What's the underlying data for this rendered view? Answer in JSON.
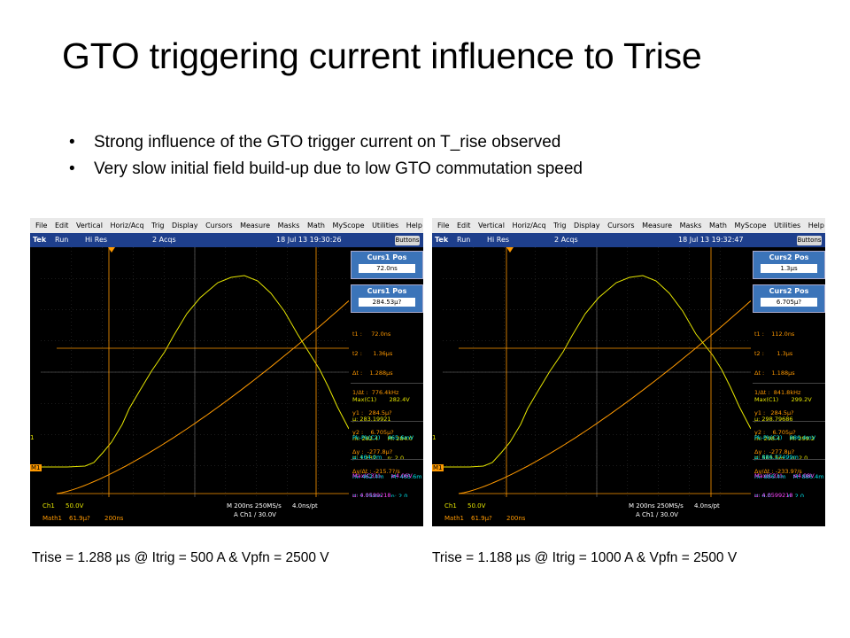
{
  "slide": {
    "title": "GTO triggering current influence to Trise",
    "bullets": [
      "Strong influence of the GTO trigger current on T_rise observed",
      "Very slow initial field build-up due to low GTO commutation speed"
    ],
    "bullet_glyph": "•"
  },
  "colors": {
    "ch1": "#e6e600",
    "cursor": "#ff9900",
    "ch2": "#00e5ee",
    "math": "#ff44ff",
    "panel": "#3b74b9"
  },
  "scope_common": {
    "menu": [
      "File",
      "Edit",
      "Vertical",
      "Horiz/Acq",
      "Trig",
      "Display",
      "Cursors",
      "Measure",
      "Masks",
      "Math",
      "MyScope",
      "Utilities",
      "Help"
    ],
    "brand": "Tek",
    "run": "Run",
    "mode": "Hi Res",
    "acqs": "2 Acqs",
    "buttons_label": "Buttons",
    "ch1_marker": "1",
    "m1_marker": "M1",
    "ch1_scale": "Ch1",
    "ch1_scale_value": "50.0V",
    "math_label": "Math1",
    "math_value": "61.9μ?",
    "math_time": "200ns",
    "horizontal": "M 200ns 250MS/s",
    "pts": "4.0ns/pt",
    "trigger": "A  Ch1  ∕  30.0V"
  },
  "scopes": [
    {
      "datetime": "18 Jul 13 19:30:26",
      "curs_top_label": "Curs1 Pos",
      "curs_top_value": "72.0ns",
      "curs_bot_label": "Curs1 Pos",
      "curs_bot_value": "284.53μ?",
      "readouts": [
        "t1 :     72.0ns",
        "t2 :      1.36μs",
        "Δt :    1.288μs",
        "1/Δt :  776.4kHz",
        "y1 :   284.5μ?",
        "y2 :    6.705μ?",
        "Δy :  -277.8μ?",
        "Δy/Δt : -215.7?/s"
      ],
      "meas1": [
        "Max(C1)       282.4V",
        "μ: 283.19921",
        "m: 282.4     M: 284.0",
        "σ: 1.132      n: 2.0"
      ],
      "meas2": [
        "Pk-Pk(C2)    465.6mV",
        "μ: 464.0m",
        "m: 462.4m    M: 465.6m",
        "σ: 2.254m     n: 2.0"
      ],
      "meas3": [
        "Max(C3)⚠     ≥4.06V",
        "μ: 4.0599218",
        "m: 4.06       M: 4.06",
        "σ: 0.0         n: 2.0"
      ],
      "caption": "Trise = 1.288 µs @ Itrig = 500 A & Vpfn = 2500 V"
    },
    {
      "datetime": "18 Jul 13 19:32:47",
      "curs_top_label": "Curs2 Pos",
      "curs_top_value": "1.3μs",
      "curs_bot_label": "Curs2 Pos",
      "curs_bot_value": "6.705μ?",
      "readouts": [
        "t1 :    112.0ns",
        "t2 :       1.3μs",
        "Δt :    1.188μs",
        "1/Δt :  841.8kHz",
        "y1 :   284.5μ?",
        "y2 :    6.705μ?",
        "Δy :  -277.8μ?",
        "Δy/Δt : -233.9?/s"
      ],
      "meas1": [
        "Max(C1)       299.2V",
        "μ: 298.79686",
        "m: 298.4     M: 299.2",
        "σ: 563.5m    n: 2.0"
      ],
      "meas2": [
        "Pk-Pk(C2)    886.4mV",
        "μ: 886.37499m",
        "m: 886.4m    M: 886.4m",
        "σ: 0.0         n: 2.0"
      ],
      "meas3": [
        "Max(C3)⚠     ≤4.08V",
        "μ: 4.0599218",
        "m: 4.06       M: 4.06",
        "σ: 0.0         n: 2.0"
      ],
      "caption": "Trise = 1.188 µs @ Itrig = 1000 A & Vpfn = 2500 V"
    }
  ]
}
